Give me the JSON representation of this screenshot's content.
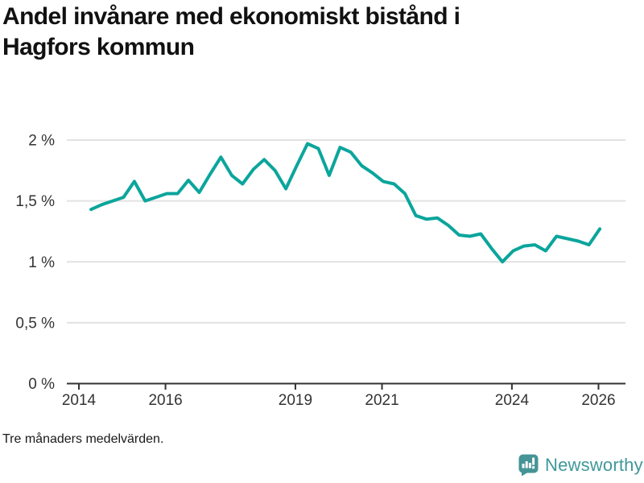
{
  "page": {
    "title": "Andel invånare med ekonomiskt bistånd i Hagfors kommun",
    "title_lines": [
      "Andel invånare med ekonomiskt bistånd i",
      "Hagfors kommun"
    ],
    "footnote": "Tre månaders medelvärden.",
    "brand": {
      "name": "Newsworthy",
      "icon": "bar-chart-speech-bubble",
      "color": "#3f989b"
    }
  },
  "chart_data": {
    "type": "line",
    "title": "Andel invånare med ekonomiskt bistånd i Hagfors kommun",
    "xlabel": "",
    "ylabel": "",
    "y_unit": "%",
    "ylim": [
      0,
      2
    ],
    "xlim_years": [
      2013.72,
      2026.62
    ],
    "grid": "horizontal",
    "legend": "none",
    "line_color": "#0ba59c",
    "axis_color": "#333333",
    "gridline_color": "#e2e2e2",
    "y_ticks": [
      {
        "value": 0,
        "label": "0 %"
      },
      {
        "value": 0.5,
        "label": "0,5 %"
      },
      {
        "value": 1,
        "label": "1 %"
      },
      {
        "value": 1.5,
        "label": "1,5 %"
      },
      {
        "value": 2,
        "label": "2 %"
      }
    ],
    "x_ticks": [
      {
        "year": 2014,
        "label": "2014"
      },
      {
        "year": 2016,
        "label": "2016"
      },
      {
        "year": 2019,
        "label": "2019"
      },
      {
        "year": 2021,
        "label": "2021"
      },
      {
        "year": 2024,
        "label": "2024"
      },
      {
        "year": 2026,
        "label": "2026"
      }
    ],
    "note": "Tre månaders medelvärden.",
    "series": [
      {
        "name": "Andel invånare med ekonomiskt bistånd",
        "x_years": [
          2014.28,
          2014.53,
          2014.78,
          2015.03,
          2015.28,
          2015.53,
          2015.78,
          2016.03,
          2016.28,
          2016.53,
          2016.78,
          2017.03,
          2017.28,
          2017.53,
          2017.78,
          2018.03,
          2018.28,
          2018.53,
          2018.78,
          2019.03,
          2019.28,
          2019.53,
          2019.78,
          2020.03,
          2020.28,
          2020.53,
          2020.78,
          2021.03,
          2021.28,
          2021.53,
          2021.78,
          2022.03,
          2022.28,
          2022.53,
          2022.78,
          2023.03,
          2023.28,
          2023.53,
          2023.78,
          2024.03,
          2024.28,
          2024.53,
          2024.78,
          2025.03,
          2025.28,
          2025.53,
          2025.78,
          2026.03
        ],
        "values": [
          1.43,
          1.47,
          1.5,
          1.53,
          1.66,
          1.5,
          1.53,
          1.56,
          1.56,
          1.67,
          1.57,
          1.72,
          1.86,
          1.71,
          1.64,
          1.76,
          1.84,
          1.75,
          1.6,
          1.79,
          1.97,
          1.93,
          1.71,
          1.94,
          1.9,
          1.79,
          1.73,
          1.66,
          1.64,
          1.56,
          1.38,
          1.35,
          1.36,
          1.3,
          1.22,
          1.21,
          1.23,
          1.11,
          1.0,
          1.09,
          1.13,
          1.14,
          1.09,
          1.21,
          1.19,
          1.17,
          1.14,
          1.27
        ]
      }
    ]
  }
}
